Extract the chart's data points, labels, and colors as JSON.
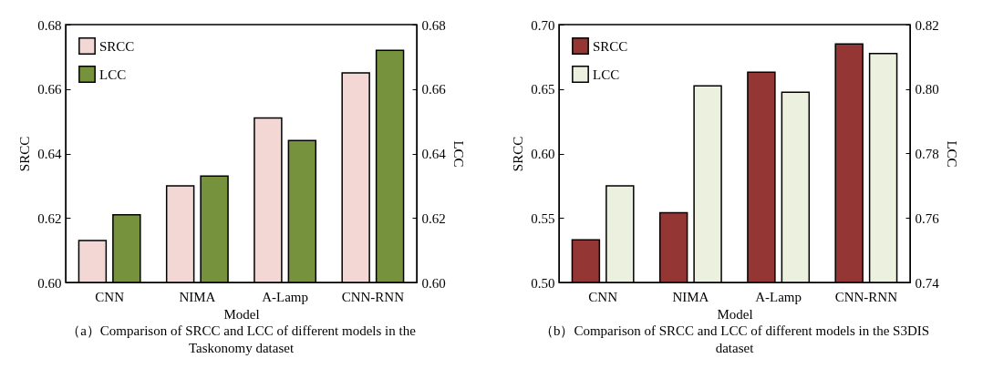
{
  "chart_data": [
    {
      "type": "bar",
      "categories": [
        "CNN",
        "NIMA",
        "A-Lamp",
        "CNN-RNN"
      ],
      "xlabel": "Model",
      "ylabel": "SRCC",
      "y2label": "LCC",
      "legend": "top left",
      "series": [
        {
          "name": "SRCC",
          "color": "#f2d7d5",
          "values": [
            0.613,
            0.63,
            0.651,
            0.665
          ]
        },
        {
          "name": "LCC",
          "color": "#76923c",
          "axis": "y2",
          "values": [
            0.621,
            0.633,
            0.644,
            0.672
          ]
        }
      ],
      "ylim": [
        0.6,
        0.68
      ],
      "yticks": [
        {
          "value": 0.6,
          "label": "0.60"
        },
        {
          "value": 0.62,
          "label": "0.62"
        },
        {
          "value": 0.64,
          "label": "0.64"
        },
        {
          "value": 0.66,
          "label": "0.66"
        },
        {
          "value": 0.68,
          "label": "0.68"
        }
      ],
      "y2lim": [
        0.6,
        0.68
      ],
      "y2ticks": [
        {
          "value": 0.6,
          "label": "0.60"
        },
        {
          "value": 0.62,
          "label": "0.62"
        },
        {
          "value": 0.64,
          "label": "0.64"
        },
        {
          "value": 0.66,
          "label": "0.66"
        },
        {
          "value": 0.68,
          "label": "0.68"
        }
      ],
      "annotations": [
        "（a）Comparison of SRCC and LCC of different models in the Taskonomy dataset"
      ]
    },
    {
      "type": "bar",
      "categories": [
        "CNN",
        "NIMA",
        "A-Lamp",
        "CNN-RNN"
      ],
      "xlabel": "Model",
      "ylabel": "SRCC",
      "y2label": "LCC",
      "legend": "top left",
      "series": [
        {
          "name": "SRCC",
          "color": "#943634",
          "values": [
            0.533,
            0.554,
            0.663,
            0.685
          ]
        },
        {
          "name": "LCC",
          "color": "#ebf1de",
          "axis": "y2",
          "values": [
            0.77,
            0.801,
            0.799,
            0.811
          ]
        }
      ],
      "ylim": [
        0.5,
        0.7
      ],
      "yticks": [
        {
          "value": 0.5,
          "label": "0.50"
        },
        {
          "value": 0.55,
          "label": "0.55"
        },
        {
          "value": 0.6,
          "label": "0.60"
        },
        {
          "value": 0.65,
          "label": "0.65"
        },
        {
          "value": 0.7,
          "label": "0.70"
        }
      ],
      "y2lim": [
        0.74,
        0.82
      ],
      "y2ticks": [
        {
          "value": 0.74,
          "label": "0.74"
        },
        {
          "value": 0.76,
          "label": "0.76"
        },
        {
          "value": 0.78,
          "label": "0.78"
        },
        {
          "value": 0.8,
          "label": "0.80"
        },
        {
          "value": 0.82,
          "label": "0.82"
        }
      ],
      "annotations": [
        "（b）Comparison of SRCC and LCC of different models in the S3DIS dataset"
      ]
    }
  ]
}
